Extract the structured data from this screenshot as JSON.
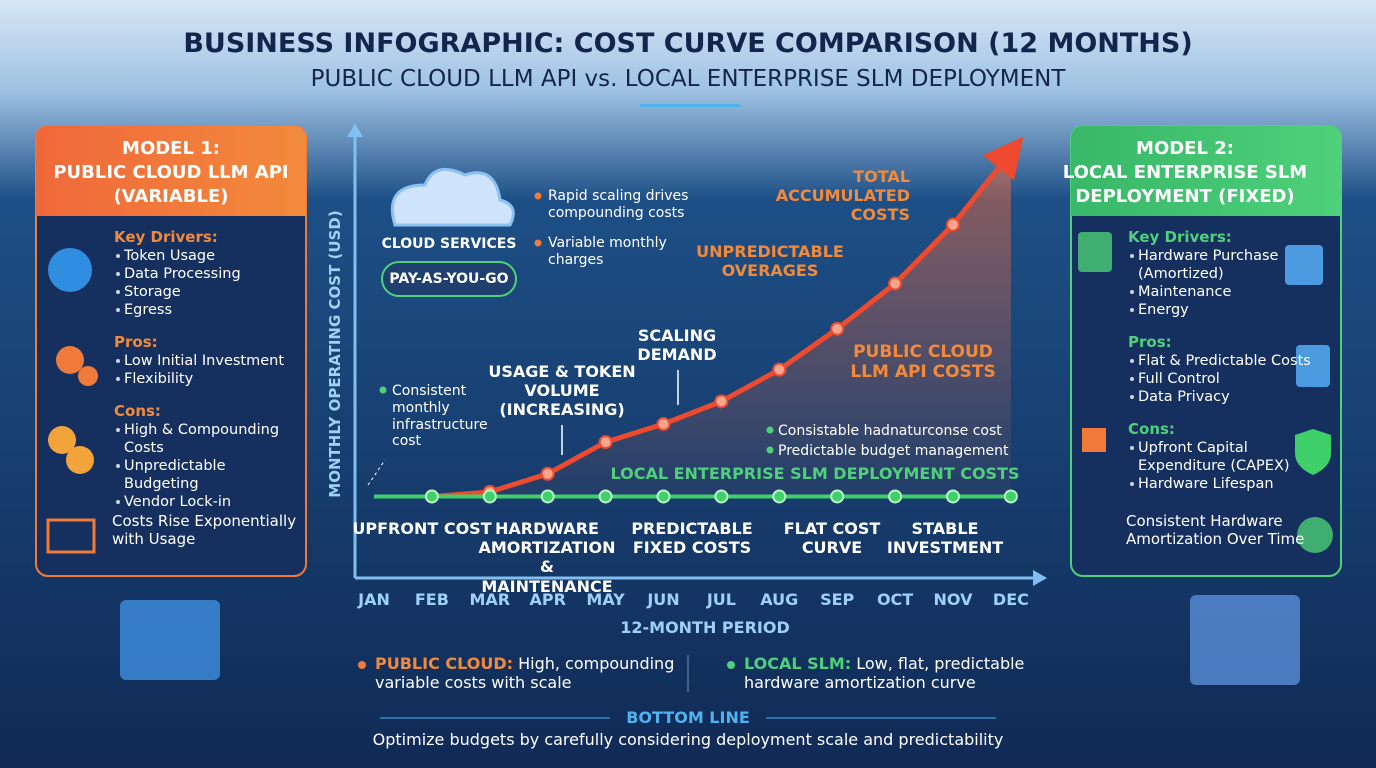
{
  "header": {
    "title": "BUSINESS INFOGRAPHIC: COST CURVE COMPARISON (12 MONTHS)",
    "subtitle": "PUBLIC CLOUD LLM API vs. LOCAL ENTERPRISE SLM DEPLOYMENT"
  },
  "left_panel": {
    "heading": [
      "MODEL 1:",
      "PUBLIC CLOUD LLM API",
      "(VARIABLE)"
    ],
    "sections": [
      {
        "title": "Key Drivers:",
        "items": [
          "Token Usage",
          "Data Processing",
          "Storage",
          "Egress"
        ]
      },
      {
        "title": "Pros:",
        "items": [
          "Low Initial Investment",
          "Flexibility"
        ]
      },
      {
        "title": "Cons:",
        "items": [
          "High & Compounding Costs",
          "Unpredictable Budgeting",
          "Vendor Lock-in"
        ]
      }
    ],
    "footer": "Costs Rise Exponentially with Usage"
  },
  "right_panel": {
    "heading": [
      "MODEL 2:",
      "LOCAL ENTERPRISE SLM",
      "DEPLOYMENT (FIXED)"
    ],
    "sections": [
      {
        "title": "Key Drivers:",
        "items": [
          "Hardware Purchase (Amortized)",
          "Maintenance",
          "Energy"
        ]
      },
      {
        "title": "Pros:",
        "items": [
          "Flat & Predictable Costs",
          "Full Control",
          "Data Privacy"
        ]
      },
      {
        "title": "Cons:",
        "items": [
          "Upfront Capital Expenditure (CAPEX)",
          "Hardware Lifespan"
        ]
      }
    ],
    "footer": "Consistent Hardware Amortization Over Time"
  },
  "chart_data": {
    "type": "line",
    "y_label": "MONTHLY OPERATING COST (USD)",
    "x_label": "12-MONTH PERIOD",
    "categories": [
      "JAN",
      "FEB",
      "MAR",
      "APR",
      "MAY",
      "JUN",
      "JUL",
      "AUG",
      "SEP",
      "OCT",
      "NOV",
      "DEC"
    ],
    "ylim": [
      0,
      100
    ],
    "series": [
      {
        "name": "PUBLIC CLOUD LLM API COSTS",
        "color": "#ee4a2e",
        "values": [
          null,
          18,
          19,
          23,
          30,
          34,
          39,
          46,
          55,
          65,
          78,
          94
        ]
      },
      {
        "name": "LOCAL ENTERPRISE SLM DEPLOYMENT COSTS",
        "color": "#3fd06a",
        "values": [
          18,
          18,
          18,
          18,
          18,
          18,
          18,
          18,
          18,
          18,
          18,
          18
        ]
      }
    ],
    "annotations": {
      "cloud_services": "CLOUD SERVICES",
      "pay_as_you_go": "PAY-AS-YOU-GO",
      "cloud_bullets": [
        "Rapid scaling drives compounding costs",
        "Variable monthly charges"
      ],
      "total": "TOTAL ACCUMULATED COSTS",
      "overages": "UNPREDICTABLE OVERAGES",
      "scaling": "SCALING DEMAND",
      "usage": "USAGE & TOKEN VOLUME (INCREASING)",
      "consistent": "Consistent monthly infrastructure cost",
      "local_bullets": [
        "Consistable hadnaturconse cost",
        "Predictable budget management"
      ],
      "phases": [
        "UPFRONT COST",
        "HARDWARE AMORTIZATION & MAINTENANCE",
        "PREDICTABLE FIXED COSTS",
        "FLAT COST CURVE",
        "STABLE INVESTMENT"
      ]
    }
  },
  "bottom": {
    "public": {
      "label": "PUBLIC CLOUD:",
      "text": "High, compounding variable costs with scale"
    },
    "local": {
      "label": "LOCAL SLM:",
      "text": "Low, flat, predictable hardware amortization curve"
    },
    "bottom_line": "BOTTOM LINE",
    "summary": "Optimize budgets by carefully considering deployment scale and predictability"
  }
}
